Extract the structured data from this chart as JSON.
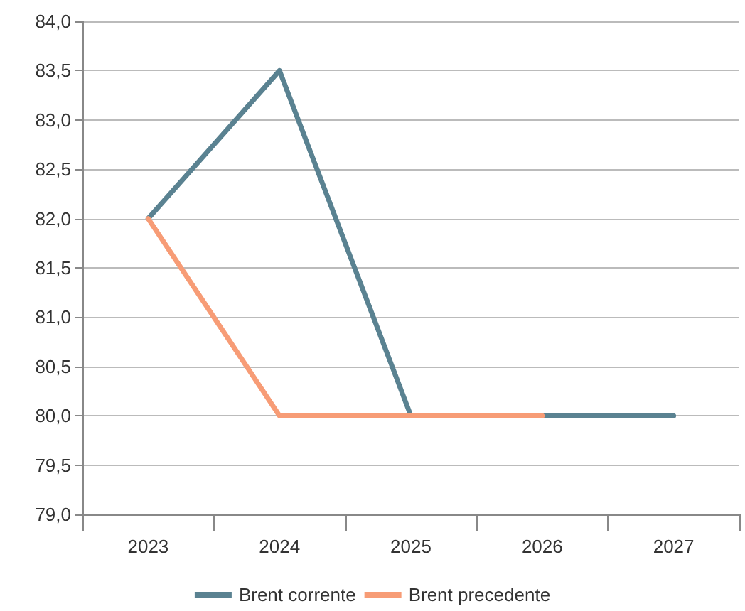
{
  "chart_data": {
    "type": "line",
    "categories": [
      "2023",
      "2024",
      "2025",
      "2026",
      "2027"
    ],
    "series": [
      {
        "name": "Brent corrente",
        "color": "#5a8291",
        "values": [
          82.0,
          83.5,
          80.0,
          80.0,
          80.0
        ]
      },
      {
        "name": "Brent precedente",
        "color": "#f79c76",
        "values": [
          82.0,
          80.0,
          80.0,
          80.0,
          null
        ]
      }
    ],
    "ylim": [
      79,
      84
    ],
    "yticks": [
      {
        "value": 79,
        "label": "79,0"
      },
      {
        "value": 79.5,
        "label": "79,5"
      },
      {
        "value": 80,
        "label": "80,0"
      },
      {
        "value": 80.5,
        "label": "80,5"
      },
      {
        "value": 81,
        "label": "81,0"
      },
      {
        "value": 81.5,
        "label": "81,5"
      },
      {
        "value": 82,
        "label": "82,0"
      },
      {
        "value": 82.5,
        "label": "82,5"
      },
      {
        "value": 83,
        "label": "83,0"
      },
      {
        "value": 83.5,
        "label": "83,5"
      },
      {
        "value": 84,
        "label": "84,0"
      }
    ],
    "grid": "y",
    "legend": "bottom",
    "marker": "none",
    "line_style": "solid"
  }
}
